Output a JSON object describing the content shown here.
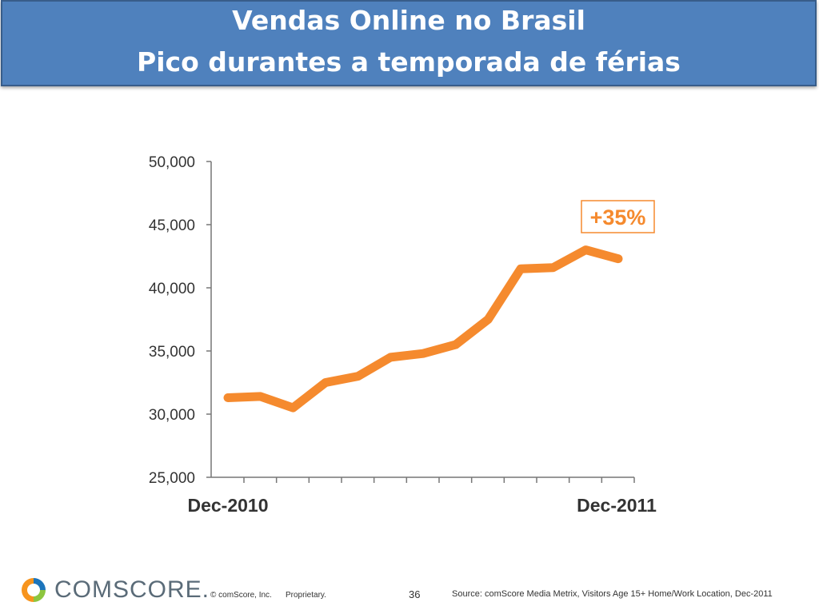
{
  "header": {
    "title_line1": "Vendas Online no Brasil",
    "title_line2": "Pico durantes a temporada de férias"
  },
  "chart_data": {
    "type": "line",
    "x_start_label": "Dec-2010",
    "x_end_label": "Dec-2011",
    "ylim": [
      25000,
      50000
    ],
    "y_ticks": [
      "25,000",
      "30,000",
      "35,000",
      "40,000",
      "45,000",
      "50,000"
    ],
    "values": [
      31300,
      31400,
      30500,
      32500,
      33000,
      34500,
      34800,
      35500,
      37500,
      41500,
      41600,
      43000,
      42300
    ],
    "line_color": "#f58a2e",
    "grid": false,
    "annotation": {
      "text": "+35%",
      "color": "#f58a2e"
    }
  },
  "footer": {
    "logo_text": "COMSCORE.",
    "copyright": "© comScore, Inc.",
    "proprietary": "Proprietary.",
    "page_number": "36",
    "source": "Source: comScore Media Metrix, Visitors Age 15+ Home/Work Location, Dec-2011"
  }
}
